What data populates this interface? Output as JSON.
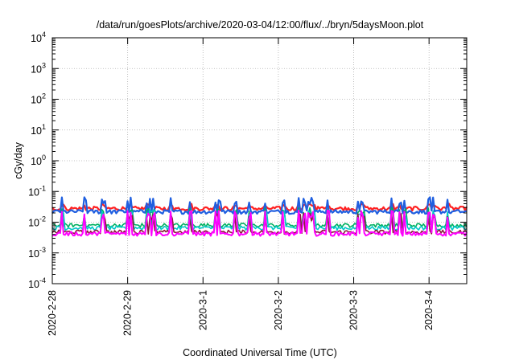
{
  "chart_data": {
    "type": "line",
    "title": "/data/run/goesPlots/archive/2020-03-04/12:00/flux/../bryn/5daysMoon.plot",
    "xlabel": "Coordinated Universal Time (UTC)",
    "ylabel": "cGy/day",
    "y_scale": "log",
    "ylim": [
      0.0001,
      10000
    ],
    "y_ticks": [
      {
        "base": "10",
        "exp": "-4",
        "value": 0.0001
      },
      {
        "base": "10",
        "exp": "-3",
        "value": 0.001
      },
      {
        "base": "10",
        "exp": "-2",
        "value": 0.01
      },
      {
        "base": "10",
        "exp": "-1",
        "value": 0.1
      },
      {
        "base": "10",
        "exp": "0",
        "value": 1
      },
      {
        "base": "10",
        "exp": "1",
        "value": 10
      },
      {
        "base": "10",
        "exp": "2",
        "value": 100
      },
      {
        "base": "10",
        "exp": "3",
        "value": 1000
      },
      {
        "base": "10",
        "exp": "4",
        "value": 10000
      }
    ],
    "x_ticks": [
      "2020-2-28",
      "2020-2-29",
      "2020-3-1",
      "2020-3-2",
      "2020-3-3",
      "2020-3-4"
    ],
    "xlim": [
      "2020-02-28",
      "2020-03-04T12:00"
    ],
    "grid": true,
    "series": [
      {
        "color": "#ff2020",
        "baseline": 0.028,
        "peak": 0.04,
        "width": 2.2
      },
      {
        "color": "#1f5fe0",
        "baseline": 0.022,
        "peak": 0.065,
        "width": 2.2
      },
      {
        "color": "#00b060",
        "baseline": 0.008,
        "peak": 0.03,
        "width": 1.6
      },
      {
        "color": "#00c8c8",
        "baseline": 0.0065,
        "peak": 0.025,
        "width": 1.6
      },
      {
        "color": "#8b1a3a",
        "baseline": 0.0048,
        "peak": 0.02,
        "width": 1.6
      },
      {
        "color": "#ff00ff",
        "baseline": 0.0042,
        "peak": 0.025,
        "width": 2.0
      }
    ]
  }
}
